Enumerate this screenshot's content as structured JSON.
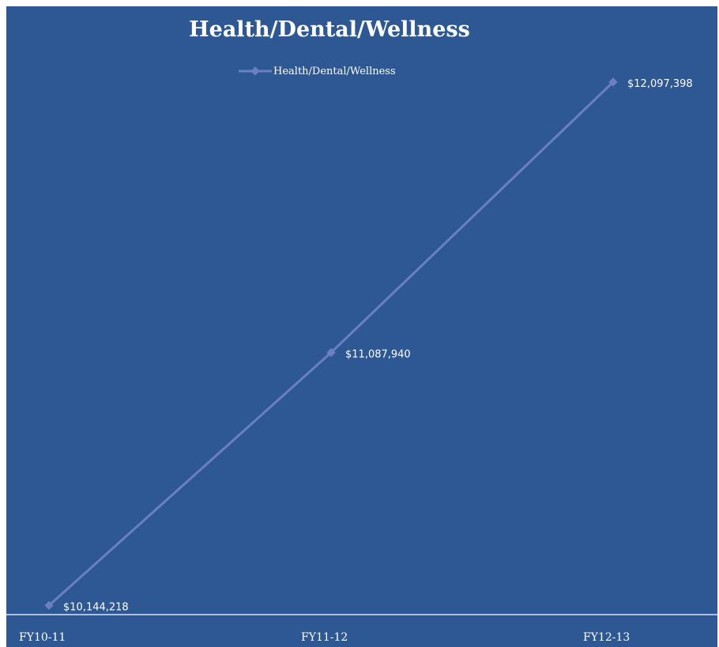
{
  "chart_data": {
    "type": "line",
    "title": "Health/Dental/Wellness",
    "categories": [
      "FY10-11",
      "FY11-12",
      "FY12-13"
    ],
    "series": [
      {
        "name": "Health/Dental/Wellness",
        "values": [
          10144218,
          11087940,
          12097398
        ],
        "labels": [
          "$10,144,218",
          "$11,087,940",
          "$12,097,398"
        ]
      }
    ],
    "ylim": [
      10110000,
      12380000
    ],
    "xlabel": "",
    "ylabel": "",
    "grid": false,
    "legend_position": "top-center",
    "colors": {
      "background": "#2e5894",
      "line": "#6b7fc4",
      "text": "#ffffff",
      "axis": "#ffffff"
    }
  }
}
